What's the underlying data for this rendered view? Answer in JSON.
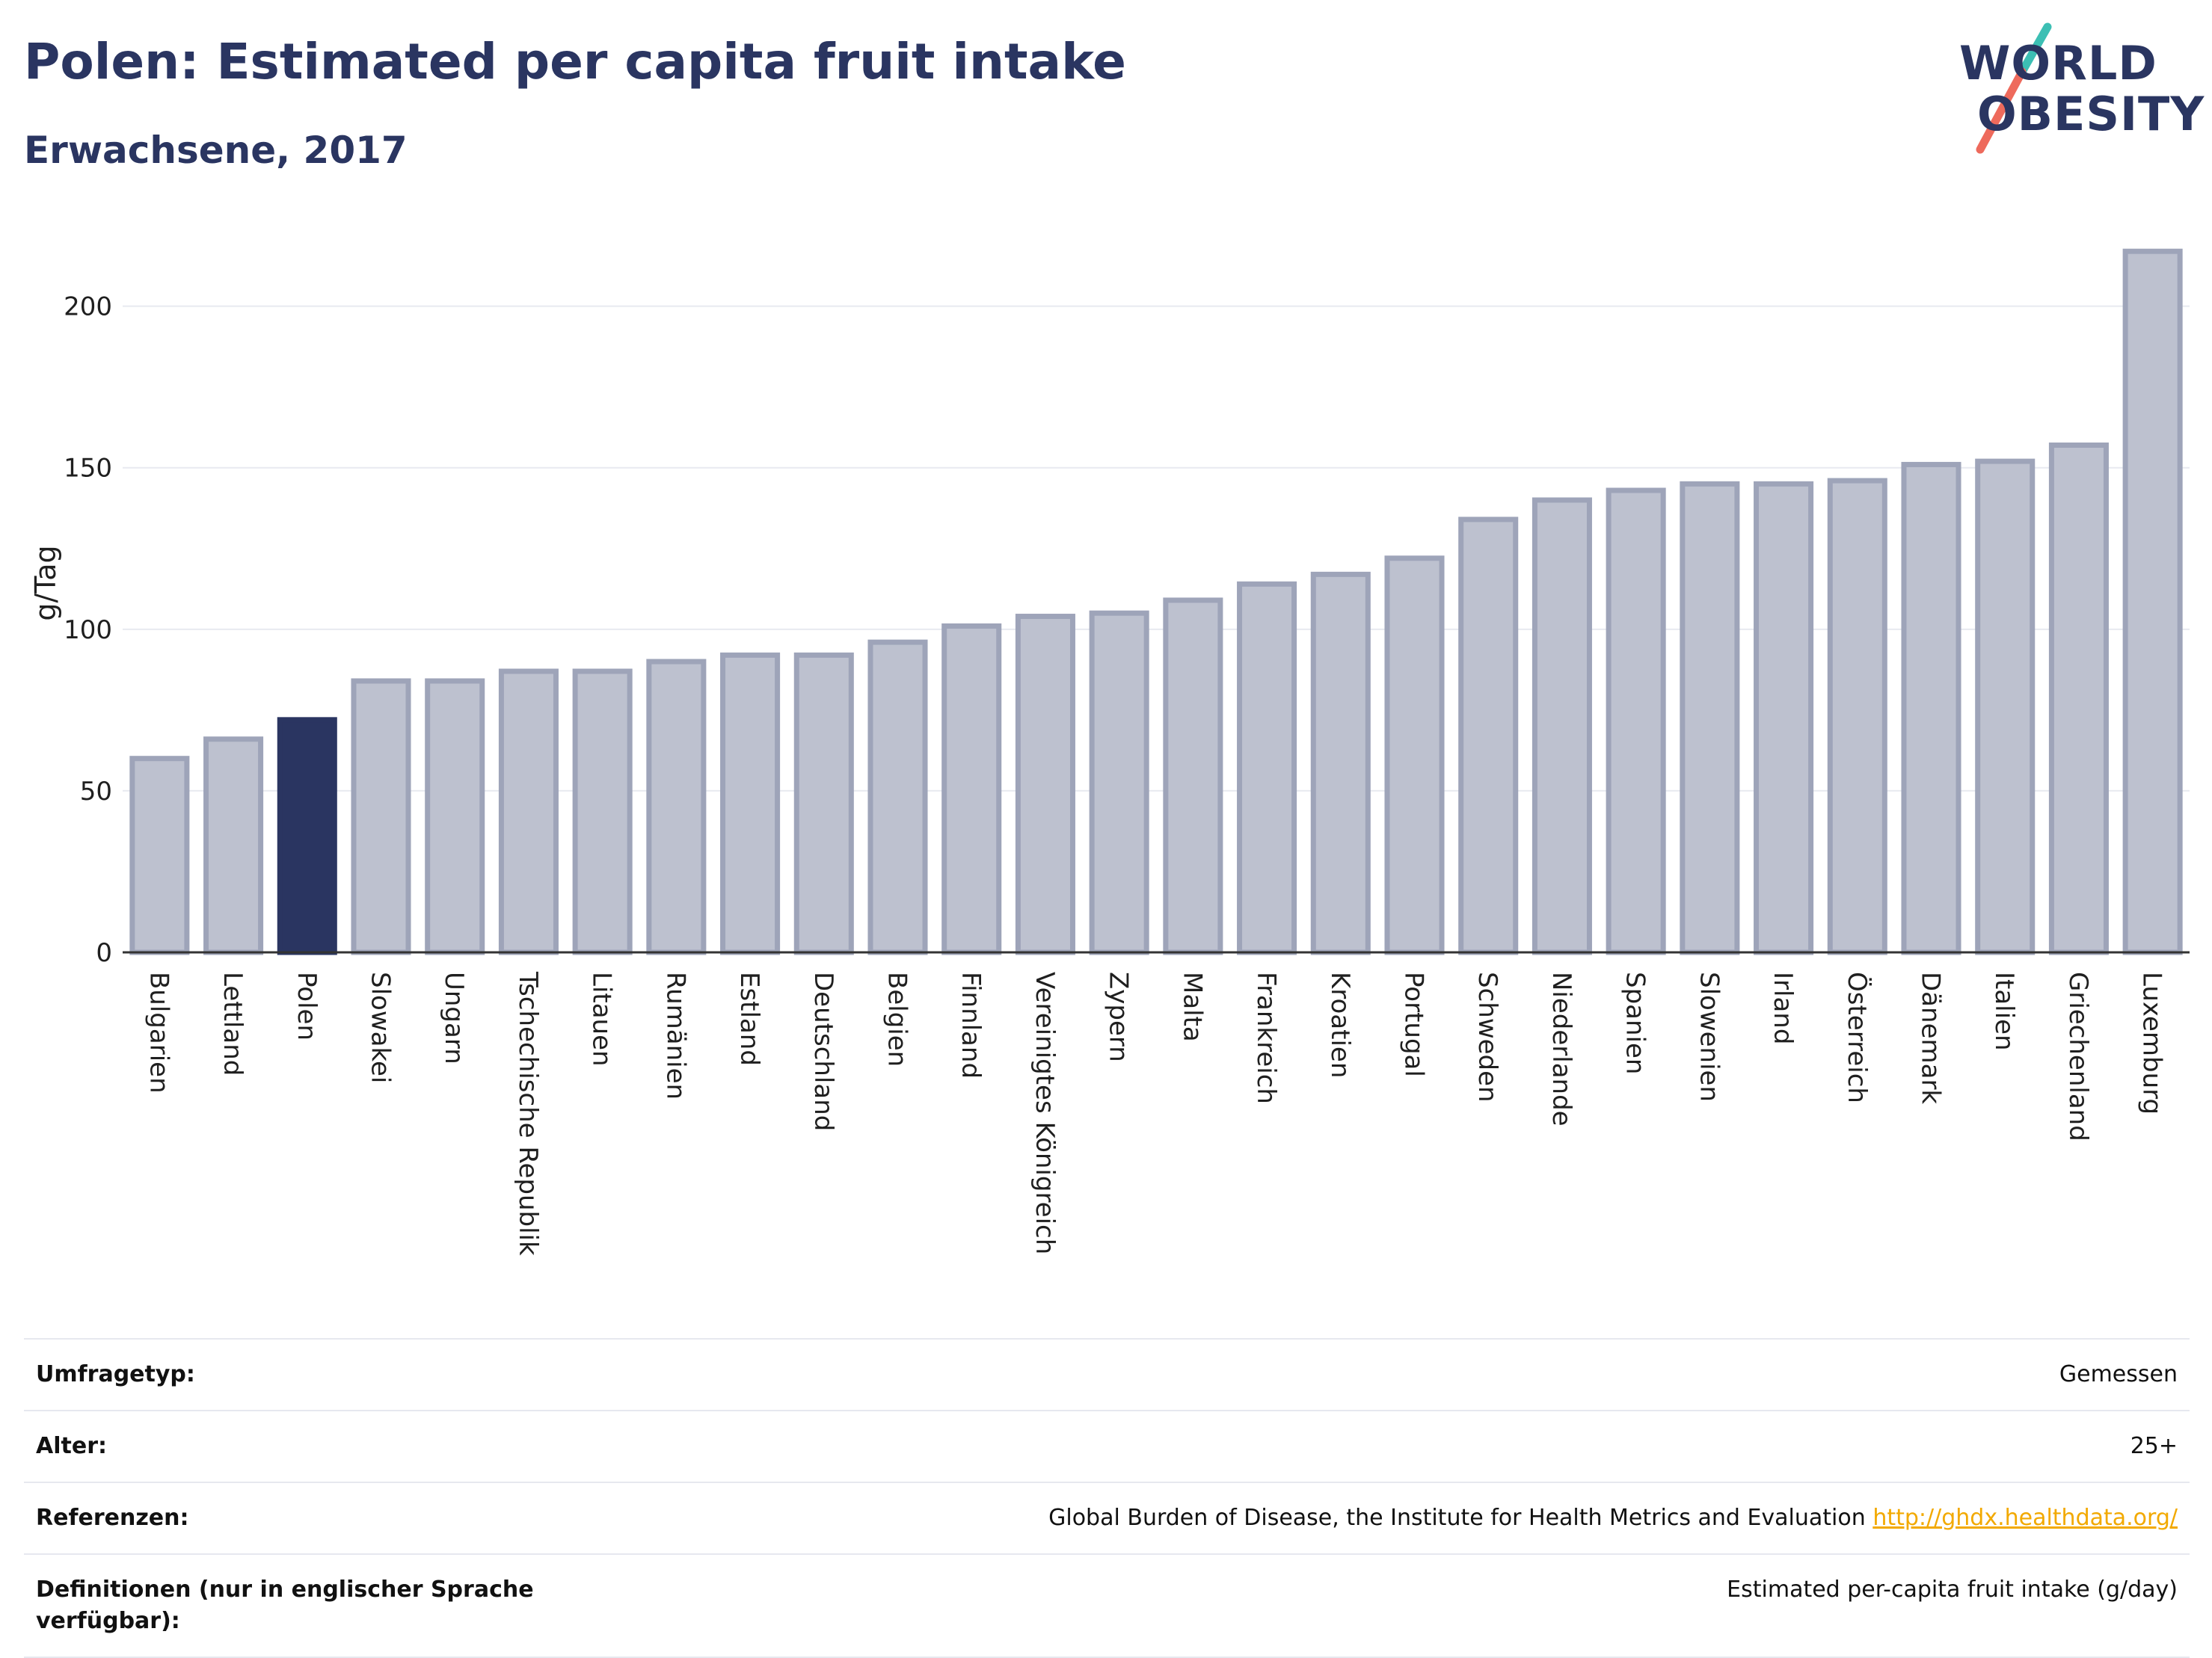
{
  "title": "Polen: Estimated per capita fruit intake",
  "subtitle": "Erwachsene, 2017",
  "logo": {
    "line1": "WORLD",
    "line2": "OBESITY"
  },
  "colors": {
    "bar": "#bdc1cf",
    "bar_border": "#9ea4b9",
    "highlight": "#2a3561",
    "grid": "#e8eaf0",
    "accent_teal": "#3cbfb4",
    "accent_coral": "#ee6a5c",
    "link": "#f2a900"
  },
  "chart_data": {
    "type": "bar",
    "title": "Polen: Estimated per capita fruit intake",
    "subtitle": "Erwachsene, 2017",
    "xlabel": "",
    "ylabel": "g/Tag",
    "ylim": [
      0,
      230
    ],
    "yticks": [
      0,
      50,
      100,
      150,
      200
    ],
    "grid": true,
    "highlight": "Polen",
    "categories": [
      "Bulgarien",
      "Lettland",
      "Polen",
      "Slowakei",
      "Ungarn",
      "Tschechische Republik",
      "Litauen",
      "Rumänien",
      "Estland",
      "Deutschland",
      "Belgien",
      "Finnland",
      "Vereinigtes Königreich",
      "Zypern",
      "Malta",
      "Frankreich",
      "Kroatien",
      "Portugal",
      "Schweden",
      "Niederlande",
      "Spanien",
      "Slowenien",
      "Irland",
      "Österreich",
      "Dänemark",
      "Italien",
      "Griechenland",
      "Luxemburg"
    ],
    "values": [
      60,
      66,
      72,
      84,
      84,
      87,
      87,
      90,
      92,
      92,
      96,
      101,
      104,
      105,
      109,
      114,
      117,
      122,
      134,
      140,
      143,
      145,
      145,
      146,
      151,
      152,
      157,
      217
    ]
  },
  "info": [
    {
      "key": "Umfragetyp:",
      "value": "Gemessen"
    },
    {
      "key": "Alter:",
      "value": "25+"
    },
    {
      "key": "Referenzen:",
      "value": "Global Burden of Disease, the Institute for Health Metrics and Evaluation",
      "link": "http://ghdx.healthdata.org/"
    },
    {
      "key": "Definitionen (nur in englischer Sprache verfügbar):",
      "value": "Estimated per-capita fruit intake (g/day)"
    }
  ]
}
